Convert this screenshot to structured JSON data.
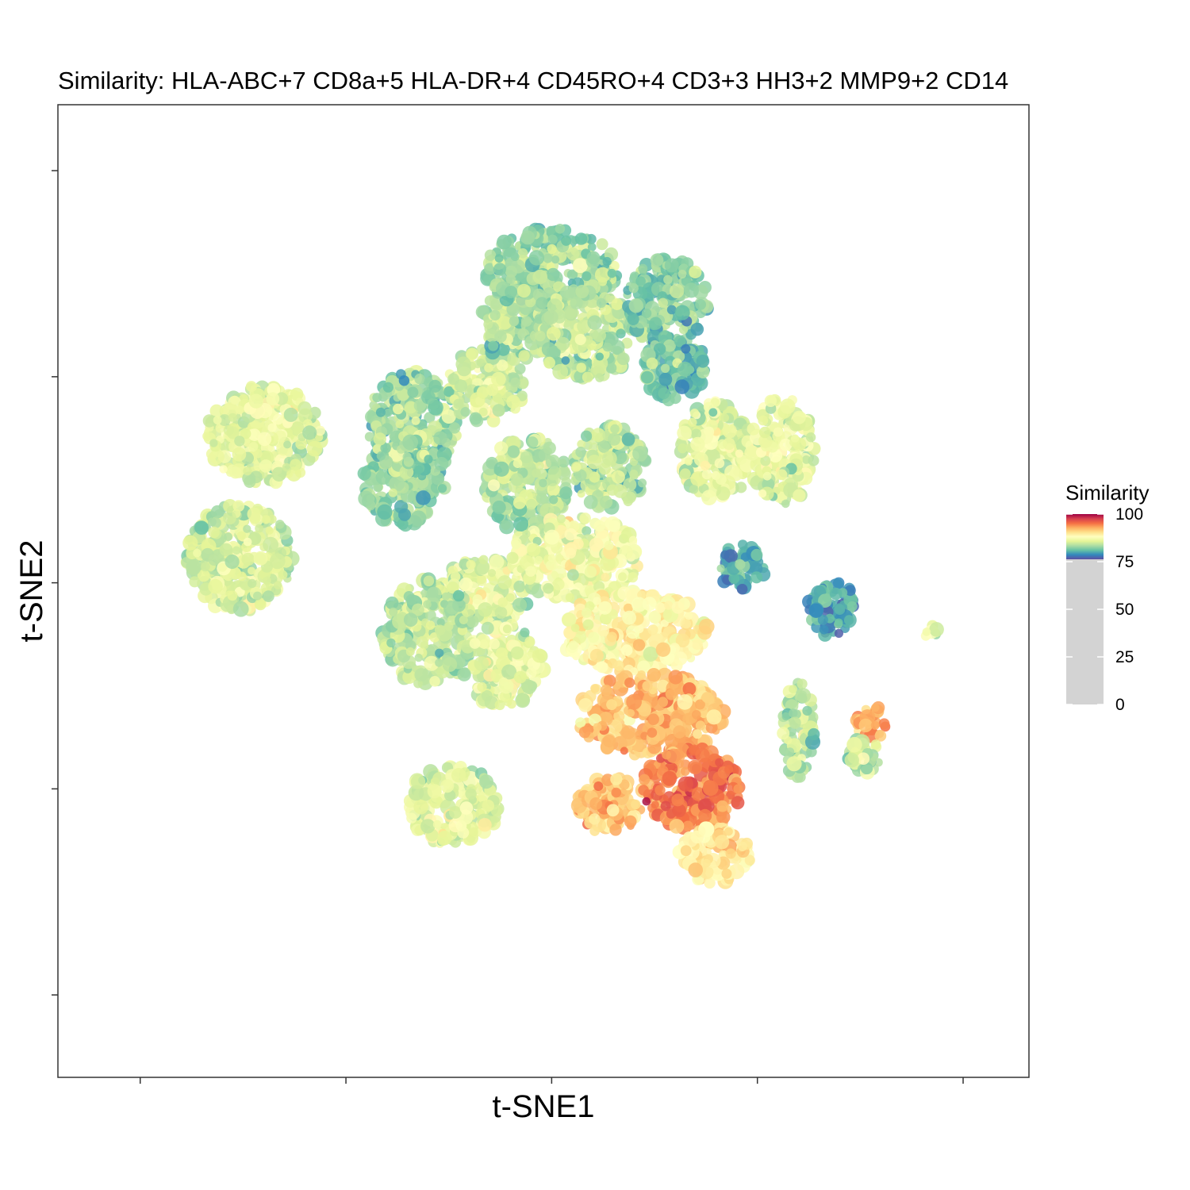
{
  "chart_data": {
    "type": "scatter",
    "title": "Similarity: HLA-ABC+7 CD8a+5 HLA-DR+4 CD45RO+4 CD3+3 HH3+2 MMP9+2 CD14",
    "xlabel": "t-SNE1",
    "ylabel": "t-SNE2",
    "x_tick_labels": [],
    "y_tick_labels": [],
    "grid": false,
    "color_variable": "Similarity",
    "color_range": [
      75,
      100
    ],
    "legend": {
      "title": "Similarity",
      "position": "right",
      "ticks": [
        100,
        75,
        50,
        25,
        0
      ],
      "gradient_colors": [
        "#5e4fa2",
        "#3288bd",
        "#66c2a5",
        "#abdda4",
        "#e6f598",
        "#ffffbf",
        "#fee08b",
        "#fdae61",
        "#f46d43",
        "#d53e4f",
        "#9e0142"
      ],
      "below_range_color": "#d3d3d3"
    },
    "clusters": [
      {
        "x": -18,
        "y": 12,
        "rx": 5.0,
        "ry": 5.0,
        "similarity": 83
      },
      {
        "x": -17,
        "y": 19,
        "rx": 5.5,
        "ry": 6.5,
        "similarity": 83
      },
      {
        "x": -8,
        "y": 24,
        "rx": 4.8,
        "ry": 4.5,
        "similarity": 85
      },
      {
        "x": -4,
        "y": 32,
        "rx": 4.5,
        "ry": 5.0,
        "similarity": 84
      },
      {
        "x": 0,
        "y": 38,
        "rx": 8.0,
        "ry": 5.0,
        "similarity": 83
      },
      {
        "x": 4,
        "y": 30,
        "rx": 6.0,
        "ry": 5.5,
        "similarity": 84
      },
      {
        "x": 14,
        "y": 34,
        "rx": 5.0,
        "ry": 5.5,
        "similarity": 82
      },
      {
        "x": 15,
        "y": 26,
        "rx": 3.8,
        "ry": 4.0,
        "similarity": 81
      },
      {
        "x": -35,
        "y": 18,
        "rx": 7.0,
        "ry": 6.0,
        "similarity": 86
      },
      {
        "x": -38,
        "y": 3,
        "rx": 6.5,
        "ry": 6.5,
        "similarity": 85
      },
      {
        "x": 20,
        "y": 16,
        "rx": 4.5,
        "ry": 6.0,
        "similarity": 86
      },
      {
        "x": 28,
        "y": 16,
        "rx": 4.0,
        "ry": 6.5,
        "similarity": 86
      },
      {
        "x": 23,
        "y": 2,
        "rx": 3.0,
        "ry": 2.8,
        "similarity": 80
      },
      {
        "x": 7,
        "y": 14,
        "rx": 4.5,
        "ry": 5.0,
        "similarity": 84
      },
      {
        "x": -3,
        "y": 12,
        "rx": 5.0,
        "ry": 6.0,
        "similarity": 84
      },
      {
        "x": -8,
        "y": -1,
        "rx": 6.0,
        "ry": 4.0,
        "similarity": 86
      },
      {
        "x": 3,
        "y": 3,
        "rx": 8.0,
        "ry": 5.0,
        "similarity": 87
      },
      {
        "x": -15,
        "y": -6,
        "rx": 5.5,
        "ry": 6.5,
        "similarity": 84
      },
      {
        "x": -6,
        "y": -10,
        "rx": 5.0,
        "ry": 5.0,
        "similarity": 86
      },
      {
        "x": 10,
        "y": -6,
        "rx": 9.0,
        "ry": 5.0,
        "similarity": 89
      },
      {
        "x": 12,
        "y": -16,
        "rx": 9.0,
        "ry": 5.0,
        "similarity": 92
      },
      {
        "x": 17,
        "y": -25,
        "rx": 6.0,
        "ry": 5.0,
        "similarity": 95
      },
      {
        "x": 7,
        "y": -27,
        "rx": 4.0,
        "ry": 3.5,
        "similarity": 92
      },
      {
        "x": 20,
        "y": -33,
        "rx": 4.5,
        "ry": 3.5,
        "similarity": 90
      },
      {
        "x": -12,
        "y": -27,
        "rx": 5.5,
        "ry": 5.0,
        "similarity": 86
      },
      {
        "x": 30,
        "y": -18,
        "rx": 2.0,
        "ry": 6.0,
        "similarity": 84
      },
      {
        "x": 39,
        "y": -17,
        "rx": 2.0,
        "ry": 2.0,
        "similarity": 93
      },
      {
        "x": 38,
        "y": -21,
        "rx": 2.0,
        "ry": 2.5,
        "similarity": 84
      },
      {
        "x": 34,
        "y": -3,
        "rx": 3.0,
        "ry": 3.5,
        "similarity": 80
      },
      {
        "x": 46,
        "y": -6,
        "rx": 1.0,
        "ry": 1.0,
        "similarity": 86
      }
    ]
  }
}
